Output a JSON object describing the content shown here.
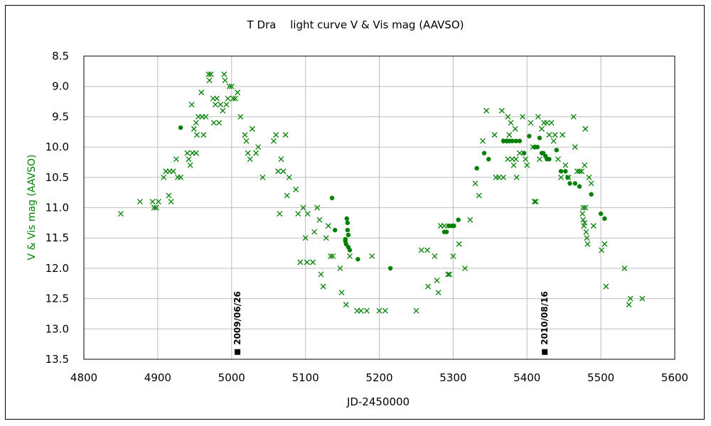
{
  "chart_data": {
    "type": "scatter",
    "title": "T Dra　 light curve  V & Vis mag (AAVSO)",
    "xlabel": "JD-2450000",
    "ylabel": "V & Vis mag (AAVSO)",
    "xlim": [
      4800,
      5600
    ],
    "ylim": [
      8.5,
      13.5
    ],
    "y_inverted": true,
    "xticks": [
      "4800",
      "4900",
      "5000",
      "5100",
      "5200",
      "5300",
      "5400",
      "5500",
      "5600"
    ],
    "yticks": [
      "8.5",
      "9.0",
      "9.5",
      "10.0",
      "10.5",
      "11.0",
      "11.5",
      "12.0",
      "12.5",
      "13.0",
      "13.5"
    ],
    "grid": true,
    "legend": "none",
    "colors": {
      "data": "#008000",
      "marker": "#000000",
      "axis_label": "#008000"
    },
    "annotations": [
      {
        "label": "2009/06/26",
        "x": 5008,
        "y": 13.38
      },
      {
        "label": "2010/08/16",
        "x": 5424,
        "y": 13.38
      }
    ],
    "series": [
      {
        "marker": "x",
        "points": [
          [
            4850,
            11.1
          ],
          [
            4876,
            10.9
          ],
          [
            4893,
            10.9
          ],
          [
            4895,
            11.0
          ],
          [
            4898,
            11.0
          ],
          [
            4901,
            10.9
          ],
          [
            4908,
            10.5
          ],
          [
            4911,
            10.4
          ],
          [
            4915,
            10.8
          ],
          [
            4916,
            10.4
          ],
          [
            4918,
            10.9
          ],
          [
            4921,
            10.4
          ],
          [
            4925,
            10.2
          ],
          [
            4927,
            10.5
          ],
          [
            4931,
            10.5
          ],
          [
            4940,
            10.1
          ],
          [
            4942,
            10.2
          ],
          [
            4944,
            10.3
          ],
          [
            4946,
            9.3
          ],
          [
            4947,
            10.1
          ],
          [
            4949,
            9.7
          ],
          [
            4952,
            9.6
          ],
          [
            4952,
            10.1
          ],
          [
            4953,
            9.8
          ],
          [
            4955,
            9.5
          ],
          [
            4959,
            9.1
          ],
          [
            4960,
            9.5
          ],
          [
            4962,
            9.8
          ],
          [
            4965,
            9.5
          ],
          [
            4969,
            8.8
          ],
          [
            4970,
            8.9
          ],
          [
            4972,
            8.8
          ],
          [
            4975,
            9.2
          ],
          [
            4976,
            9.6
          ],
          [
            4978,
            9.3
          ],
          [
            4980,
            9.2
          ],
          [
            4983,
            9.6
          ],
          [
            4985,
            9.3
          ],
          [
            4988,
            9.4
          ],
          [
            4990,
            8.8
          ],
          [
            4991,
            8.9
          ],
          [
            4993,
            9.3
          ],
          [
            4995,
            9.2
          ],
          [
            4997,
            9.0
          ],
          [
            5000,
            9.0
          ],
          [
            5002,
            9.2
          ],
          [
            5005,
            9.2
          ],
          [
            5008,
            9.1
          ],
          [
            5012,
            9.5
          ],
          [
            5018,
            9.8
          ],
          [
            5020,
            9.9
          ],
          [
            5022,
            10.1
          ],
          [
            5025,
            10.2
          ],
          [
            5028,
            9.7
          ],
          [
            5033,
            10.1
          ],
          [
            5036,
            10.0
          ],
          [
            5042,
            10.5
          ],
          [
            5057,
            9.9
          ],
          [
            5060,
            9.8
          ],
          [
            5063,
            10.4
          ],
          [
            5065,
            11.1
          ],
          [
            5067,
            10.2
          ],
          [
            5070,
            10.4
          ],
          [
            5073,
            9.8
          ],
          [
            5075,
            10.8
          ],
          [
            5078,
            10.5
          ],
          [
            5087,
            10.7
          ],
          [
            5090,
            11.1
          ],
          [
            5093,
            11.9
          ],
          [
            5097,
            11.0
          ],
          [
            5100,
            11.5
          ],
          [
            5102,
            11.9
          ],
          [
            5103,
            11.1
          ],
          [
            5110,
            11.9
          ],
          [
            5112,
            11.4
          ],
          [
            5116,
            11.0
          ],
          [
            5119,
            11.2
          ],
          [
            5121,
            12.1
          ],
          [
            5124,
            12.3
          ],
          [
            5128,
            11.5
          ],
          [
            5131,
            11.3
          ],
          [
            5134,
            11.8
          ],
          [
            5137,
            11.8
          ],
          [
            5147,
            12.0
          ],
          [
            5149,
            12.4
          ],
          [
            5155,
            12.6
          ],
          [
            5160,
            11.8
          ],
          [
            5170,
            12.7
          ],
          [
            5175,
            12.7
          ],
          [
            5183,
            12.7
          ],
          [
            5190,
            11.8
          ],
          [
            5200,
            12.7
          ],
          [
            5208,
            12.7
          ],
          [
            5250,
            12.7
          ],
          [
            5257,
            11.7
          ],
          [
            5265,
            11.7
          ],
          [
            5266,
            12.3
          ],
          [
            5275,
            11.8
          ],
          [
            5278,
            12.2
          ],
          [
            5280,
            12.4
          ],
          [
            5283,
            11.3
          ],
          [
            5288,
            11.3
          ],
          [
            5293,
            12.1
          ],
          [
            5295,
            12.1
          ],
          [
            5300,
            11.8
          ],
          [
            5308,
            11.6
          ],
          [
            5316,
            12.0
          ],
          [
            5323,
            11.2
          ],
          [
            5330,
            10.6
          ],
          [
            5335,
            10.8
          ],
          [
            5340,
            9.9
          ],
          [
            5345,
            9.4
          ],
          [
            5356,
            9.8
          ],
          [
            5358,
            10.5
          ],
          [
            5362,
            10.5
          ],
          [
            5366,
            9.4
          ],
          [
            5368,
            10.5
          ],
          [
            5370,
            9.9
          ],
          [
            5374,
            9.5
          ],
          [
            5374,
            10.2
          ],
          [
            5376,
            9.8
          ],
          [
            5378,
            9.6
          ],
          [
            5380,
            10.2
          ],
          [
            5382,
            10.3
          ],
          [
            5384,
            9.7
          ],
          [
            5385,
            10.2
          ],
          [
            5386,
            10.5
          ],
          [
            5390,
            10.1
          ],
          [
            5394,
            9.5
          ],
          [
            5398,
            10.2
          ],
          [
            5400,
            10.3
          ],
          [
            5405,
            9.6
          ],
          [
            5408,
            10.0
          ],
          [
            5410,
            10.9
          ],
          [
            5412,
            10.9
          ],
          [
            5415,
            9.5
          ],
          [
            5417,
            10.2
          ],
          [
            5420,
            9.7
          ],
          [
            5423,
            9.6
          ],
          [
            5427,
            9.6
          ],
          [
            5430,
            9.8
          ],
          [
            5433,
            9.6
          ],
          [
            5436,
            9.9
          ],
          [
            5438,
            9.8
          ],
          [
            5442,
            10.2
          ],
          [
            5446,
            10.5
          ],
          [
            5448,
            9.8
          ],
          [
            5452,
            10.3
          ],
          [
            5456,
            10.5
          ],
          [
            5463,
            9.5
          ],
          [
            5465,
            10.0
          ],
          [
            5468,
            10.4
          ],
          [
            5471,
            10.4
          ],
          [
            5474,
            10.4
          ],
          [
            5476,
            11.0
          ],
          [
            5478,
            10.3
          ],
          [
            5479,
            9.7
          ],
          [
            5480,
            11.4
          ],
          [
            5482,
            11.6
          ],
          [
            5484,
            10.5
          ],
          [
            5487,
            10.6
          ],
          [
            5490,
            11.3
          ],
          [
            5501,
            11.7
          ],
          [
            5505,
            11.6
          ],
          [
            5507,
            12.3
          ],
          [
            5532,
            12.0
          ],
          [
            5538,
            12.6
          ],
          [
            5540,
            12.5
          ],
          [
            5556,
            12.5
          ],
          [
            5475,
            11.1
          ],
          [
            5476,
            11.2
          ],
          [
            5477,
            11.3
          ],
          [
            5478,
            11.25
          ],
          [
            5479,
            11.0
          ],
          [
            5481,
            11.5
          ]
        ]
      },
      {
        "marker": "dot",
        "points": [
          [
            4931,
            9.68
          ],
          [
            5136,
            10.84
          ],
          [
            5140,
            11.37
          ],
          [
            5154,
            11.52
          ],
          [
            5154,
            11.55
          ],
          [
            5155,
            11.6
          ],
          [
            5156,
            11.18
          ],
          [
            5157,
            11.25
          ],
          [
            5157,
            11.37
          ],
          [
            5158,
            11.45
          ],
          [
            5158,
            11.65
          ],
          [
            5160,
            11.7
          ],
          [
            5171,
            11.85
          ],
          [
            5215,
            12.0
          ],
          [
            5288,
            11.4
          ],
          [
            5291,
            11.4
          ],
          [
            5294,
            11.3
          ],
          [
            5298,
            11.3
          ],
          [
            5301,
            11.3
          ],
          [
            5307,
            11.2
          ],
          [
            5332,
            10.35
          ],
          [
            5342,
            10.1
          ],
          [
            5348,
            10.2
          ],
          [
            5368,
            9.9
          ],
          [
            5372,
            9.9
          ],
          [
            5376,
            9.9
          ],
          [
            5380,
            9.9
          ],
          [
            5385,
            9.9
          ],
          [
            5390,
            9.9
          ],
          [
            5396,
            10.1
          ],
          [
            5403,
            9.82
          ],
          [
            5410,
            10.0
          ],
          [
            5417,
            9.85
          ],
          [
            5422,
            10.1
          ],
          [
            5425,
            10.15
          ],
          [
            5427,
            10.2
          ],
          [
            5430,
            10.2
          ],
          [
            5440,
            10.05
          ],
          [
            5446,
            10.4
          ],
          [
            5452,
            10.4
          ],
          [
            5455,
            10.5
          ],
          [
            5458,
            10.6
          ],
          [
            5465,
            10.6
          ],
          [
            5471,
            10.65
          ],
          [
            5487,
            10.78
          ],
          [
            5500,
            11.1
          ],
          [
            5505,
            11.18
          ],
          [
            5414,
            10.0
          ],
          [
            5420,
            10.1
          ]
        ]
      }
    ]
  }
}
